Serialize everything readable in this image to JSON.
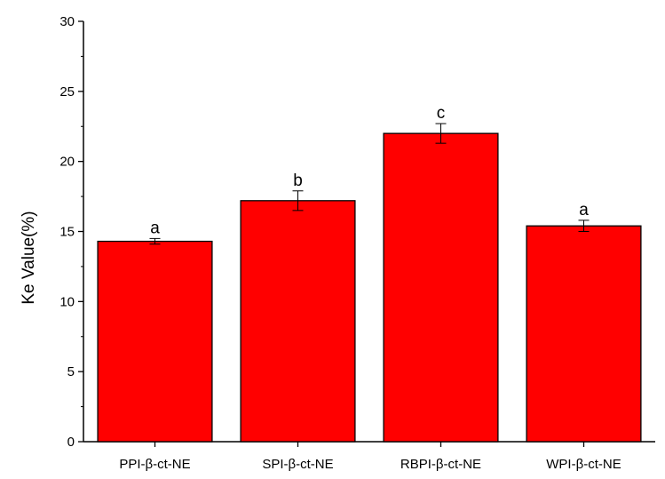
{
  "chart_data": {
    "type": "bar",
    "title": "",
    "xlabel": "",
    "ylabel": "Ke Value(%)",
    "ylim": [
      0,
      30
    ],
    "yticks": [
      0,
      5,
      10,
      15,
      20,
      25,
      30
    ],
    "grid": false,
    "legend": "none",
    "categories": [
      "PPI-β-ct-NE",
      "SPI-β-ct-NE",
      "RBPI-β-ct-NE",
      "WPI-β-ct-NE"
    ],
    "values": [
      14.3,
      17.2,
      22.0,
      15.4
    ],
    "errors": [
      0.2,
      0.7,
      0.7,
      0.4
    ],
    "significance": [
      "a",
      "b",
      "c",
      "a"
    ],
    "bar_color": "#ff0000"
  }
}
